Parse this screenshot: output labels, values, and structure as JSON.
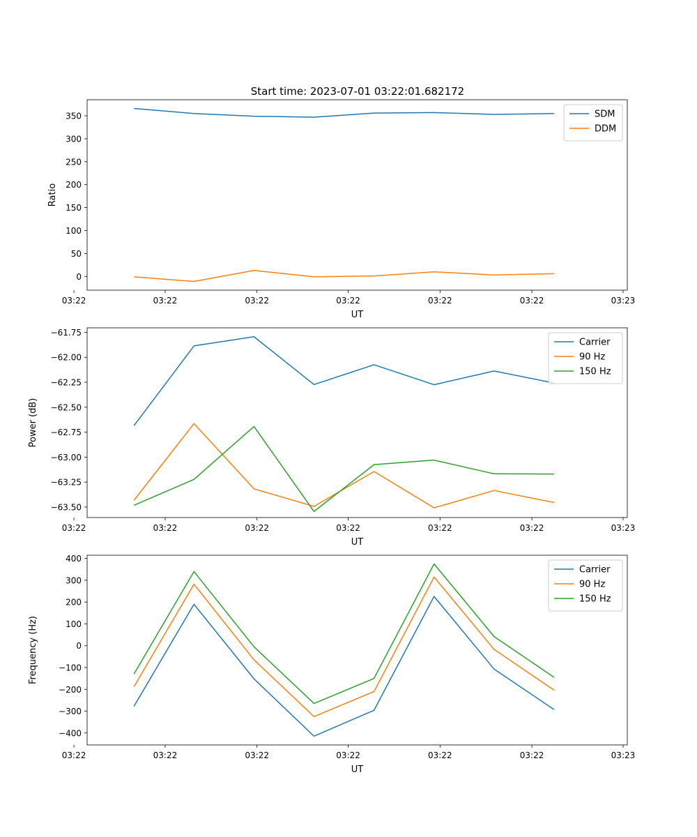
{
  "figure_title": "Start time: 2023-07-01 03:22:01.682172",
  "colors": {
    "blue": "#1f77b4",
    "orange": "#ff7f0e",
    "green": "#2ca02c"
  },
  "chart_data": [
    {
      "type": "line",
      "title": "Start time: 2023-07-01 03:22:01.682172",
      "xlabel": "UT",
      "ylabel": "Ratio",
      "x_tick_labels": [
        "03:22",
        "03:22",
        "03:22",
        "03:22",
        "03:22",
        "03:22",
        "03:23"
      ],
      "x": [
        1,
        2,
        3,
        4,
        5,
        6,
        7,
        8
      ],
      "xlim": [
        0.22,
        9.22
      ],
      "ylim": [
        -30,
        385
      ],
      "yticks": [
        0,
        50,
        100,
        150,
        200,
        250,
        300,
        350
      ],
      "ytick_labels": [
        "0",
        "50",
        "100",
        "150",
        "200",
        "250",
        "300",
        "350"
      ],
      "legend_position": "top-right",
      "grid": false,
      "series": [
        {
          "name": "SDM",
          "color": "#1f77b4",
          "values": [
            366,
            355,
            349,
            347,
            356,
            357,
            353,
            355
          ]
        },
        {
          "name": "DDM",
          "color": "#ff7f0e",
          "values": [
            -1,
            -11,
            13,
            -1,
            1,
            10,
            3,
            6
          ]
        }
      ]
    },
    {
      "type": "line",
      "title": "",
      "xlabel": "UT",
      "ylabel": "Power (dB)",
      "x_tick_labels": [
        "03:22",
        "03:22",
        "03:22",
        "03:22",
        "03:22",
        "03:22",
        "03:23"
      ],
      "x": [
        1,
        2,
        3,
        4,
        5,
        6,
        7,
        8
      ],
      "xlim": [
        0.22,
        9.22
      ],
      "ylim": [
        -63.605,
        -61.705
      ],
      "yticks": [
        -63.5,
        -63.25,
        -63.0,
        -62.75,
        -62.5,
        -62.25,
        -62.0,
        -61.75
      ],
      "ytick_labels": [
        "−63.50",
        "−63.25",
        "−63.00",
        "−62.75",
        "−62.50",
        "−62.25",
        "−62.00",
        "−61.75"
      ],
      "legend_position": "top-right",
      "grid": false,
      "series": [
        {
          "name": "Carrier",
          "color": "#1f77b4",
          "values": [
            -62.685,
            -61.886,
            -61.794,
            -62.273,
            -62.075,
            -62.275,
            -62.137,
            -62.258
          ]
        },
        {
          "name": "90 Hz",
          "color": "#ff7f0e",
          "values": [
            -63.432,
            -62.664,
            -63.318,
            -63.493,
            -63.144,
            -63.508,
            -63.334,
            -63.455
          ]
        },
        {
          "name": "150 Hz",
          "color": "#2ca02c",
          "values": [
            -63.482,
            -63.223,
            -62.693,
            -63.544,
            -63.075,
            -63.03,
            -63.167,
            -63.169
          ]
        }
      ]
    },
    {
      "type": "line",
      "title": "",
      "xlabel": "UT",
      "ylabel": "Frequency (Hz)",
      "x_tick_labels": [
        "03:22",
        "03:22",
        "03:22",
        "03:22",
        "03:22",
        "03:22",
        "03:23"
      ],
      "x": [
        1,
        2,
        3,
        4,
        5,
        6,
        7,
        8
      ],
      "xlim": [
        0.22,
        9.22
      ],
      "ylim": [
        -455,
        415
      ],
      "yticks": [
        -400,
        -300,
        -200,
        -100,
        0,
        100,
        200,
        300,
        400
      ],
      "ytick_labels": [
        "−400",
        "−300",
        "−200",
        "−100",
        "0",
        "100",
        "200",
        "300",
        "400"
      ],
      "legend_position": "top-right",
      "grid": false,
      "series": [
        {
          "name": "Carrier",
          "color": "#1f77b4",
          "values": [
            -278,
            190,
            -152,
            -415,
            -296,
            226,
            -107,
            -293
          ]
        },
        {
          "name": "90 Hz",
          "color": "#ff7f0e",
          "values": [
            -188,
            282,
            -65,
            -325,
            -210,
            315,
            -17,
            -204
          ]
        },
        {
          "name": "150 Hz",
          "color": "#2ca02c",
          "values": [
            -130,
            340,
            -5,
            -265,
            -150,
            375,
            42,
            -145
          ]
        }
      ]
    }
  ]
}
